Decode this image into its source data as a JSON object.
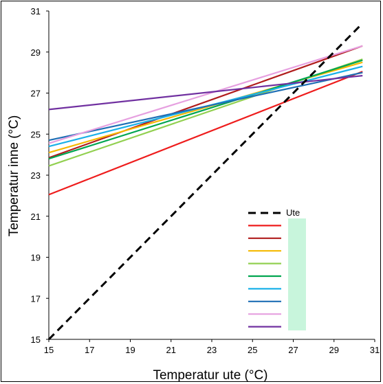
{
  "chart_data": {
    "type": "line",
    "title": "",
    "xlabel": "Temperatur ute  (°C)",
    "ylabel": "Temperatur inne  (°C)",
    "xlim": [
      15,
      31
    ],
    "ylim": [
      15,
      31
    ],
    "xticks": [
      "15",
      "17",
      "19",
      "21",
      "23",
      "25",
      "27",
      "29",
      "31"
    ],
    "yticks": [
      "15",
      "17",
      "19",
      "21",
      "23",
      "25",
      "27",
      "29",
      "31"
    ],
    "grid": false,
    "legend_position": "bottom-right",
    "series": [
      {
        "name": "Ute",
        "color": "#000000",
        "dashed": true,
        "x": [
          15,
          30.4
        ],
        "y": [
          15,
          30.4
        ]
      },
      {
        "name": "",
        "color": "#ee1c1c",
        "dashed": false,
        "x": [
          15,
          30.4
        ],
        "y": [
          22.05,
          28.05
        ]
      },
      {
        "name": "",
        "color": "#b01c1c",
        "dashed": false,
        "x": [
          15,
          30.4
        ],
        "y": [
          23.85,
          29.3
        ]
      },
      {
        "name": "",
        "color": "#f5b800",
        "dashed": false,
        "x": [
          15,
          30.4
        ],
        "y": [
          24.1,
          28.5
        ]
      },
      {
        "name": "",
        "color": "#92d050",
        "dashed": false,
        "x": [
          15,
          30.4
        ],
        "y": [
          23.45,
          28.65
        ]
      },
      {
        "name": "",
        "color": "#00a550",
        "dashed": false,
        "x": [
          15,
          30.4
        ],
        "y": [
          23.8,
          28.6
        ]
      },
      {
        "name": "",
        "color": "#1ab0e8",
        "dashed": false,
        "x": [
          15,
          30.4
        ],
        "y": [
          24.4,
          28.3
        ]
      },
      {
        "name": "",
        "color": "#1f6fb5",
        "dashed": false,
        "x": [
          15,
          30.4
        ],
        "y": [
          24.7,
          28.0
        ]
      },
      {
        "name": "",
        "color": "#e6a0e0",
        "dashed": false,
        "x": [
          15,
          30.4
        ],
        "y": [
          24.55,
          29.3
        ]
      },
      {
        "name": "",
        "color": "#7030a0",
        "dashed": false,
        "x": [
          15,
          30.4
        ],
        "y": [
          26.2,
          27.85
        ]
      }
    ],
    "legend_patch_color": "#c8f5dc"
  }
}
